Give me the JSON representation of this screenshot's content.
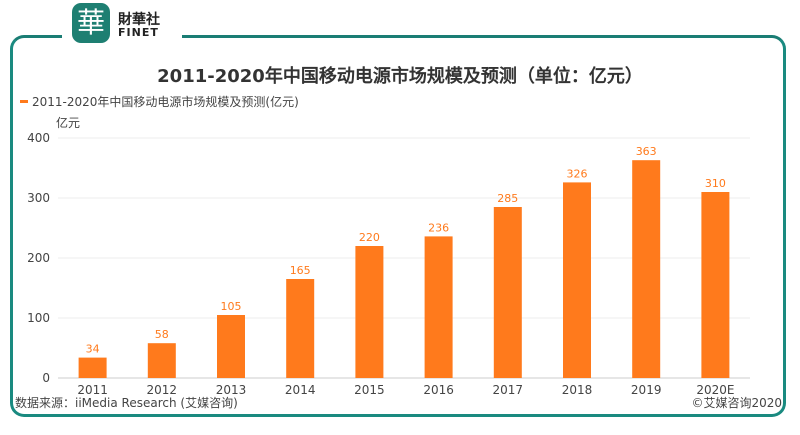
{
  "brand": {
    "name_cn": "財華社",
    "name_en": "FINET",
    "mark": "華"
  },
  "chart_data": {
    "type": "bar",
    "title": "2011-2020年中国移动电源市场规模及预测（单位：亿元）",
    "ylabel": "亿元",
    "xlabel": "",
    "categories": [
      "2011",
      "2012",
      "2013",
      "2014",
      "2015",
      "2016",
      "2017",
      "2018",
      "2019",
      "2020E"
    ],
    "series": [
      {
        "name": "2011-2020年中国移动电源市场规模及预测(亿元)",
        "values": [
          34,
          58,
          105,
          165,
          220,
          236,
          285,
          326,
          363,
          310
        ]
      }
    ],
    "ylim": [
      0,
      400
    ],
    "yticks": [
      0,
      100,
      200,
      300,
      400
    ],
    "grid": true,
    "legend": "top-left",
    "colors": {
      "bar": "#ff7a1c",
      "label": "#ff7a1c",
      "frame": "#1a8a80"
    }
  },
  "footer": {
    "source": "数据来源：iiMedia Research (艾媒咨询)",
    "copyright": "©艾媒咨询2020"
  }
}
